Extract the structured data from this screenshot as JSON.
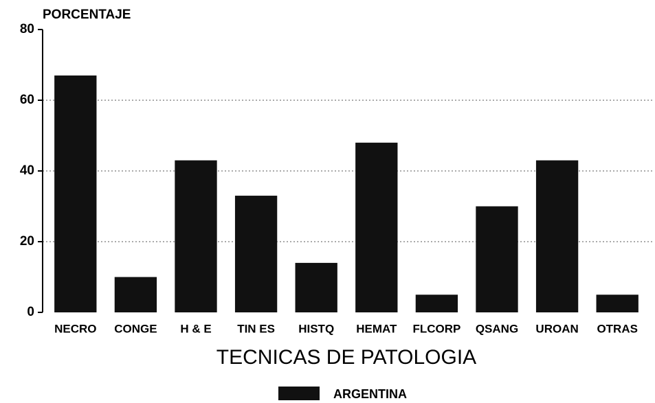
{
  "chart_data": {
    "type": "bar",
    "y_axis_label": "PORCENTAJE",
    "x_axis_label": "TECNICAS DE PATOLOGIA",
    "categories": [
      "NECRO",
      "CONGE",
      "H & E",
      "TIN ES",
      "HISTQ",
      "HEMAT",
      "FLCORP",
      "QSANG",
      "UROAN",
      "OTRAS"
    ],
    "series": [
      {
        "name": "ARGENTINA",
        "color": "#111111",
        "values": [
          67,
          10,
          43,
          33,
          14,
          48,
          5,
          30,
          43,
          5
        ]
      }
    ],
    "ylim": [
      0,
      80
    ],
    "yticks": [
      0,
      20,
      40,
      60,
      80
    ],
    "grid": true,
    "legend": "bottom"
  }
}
